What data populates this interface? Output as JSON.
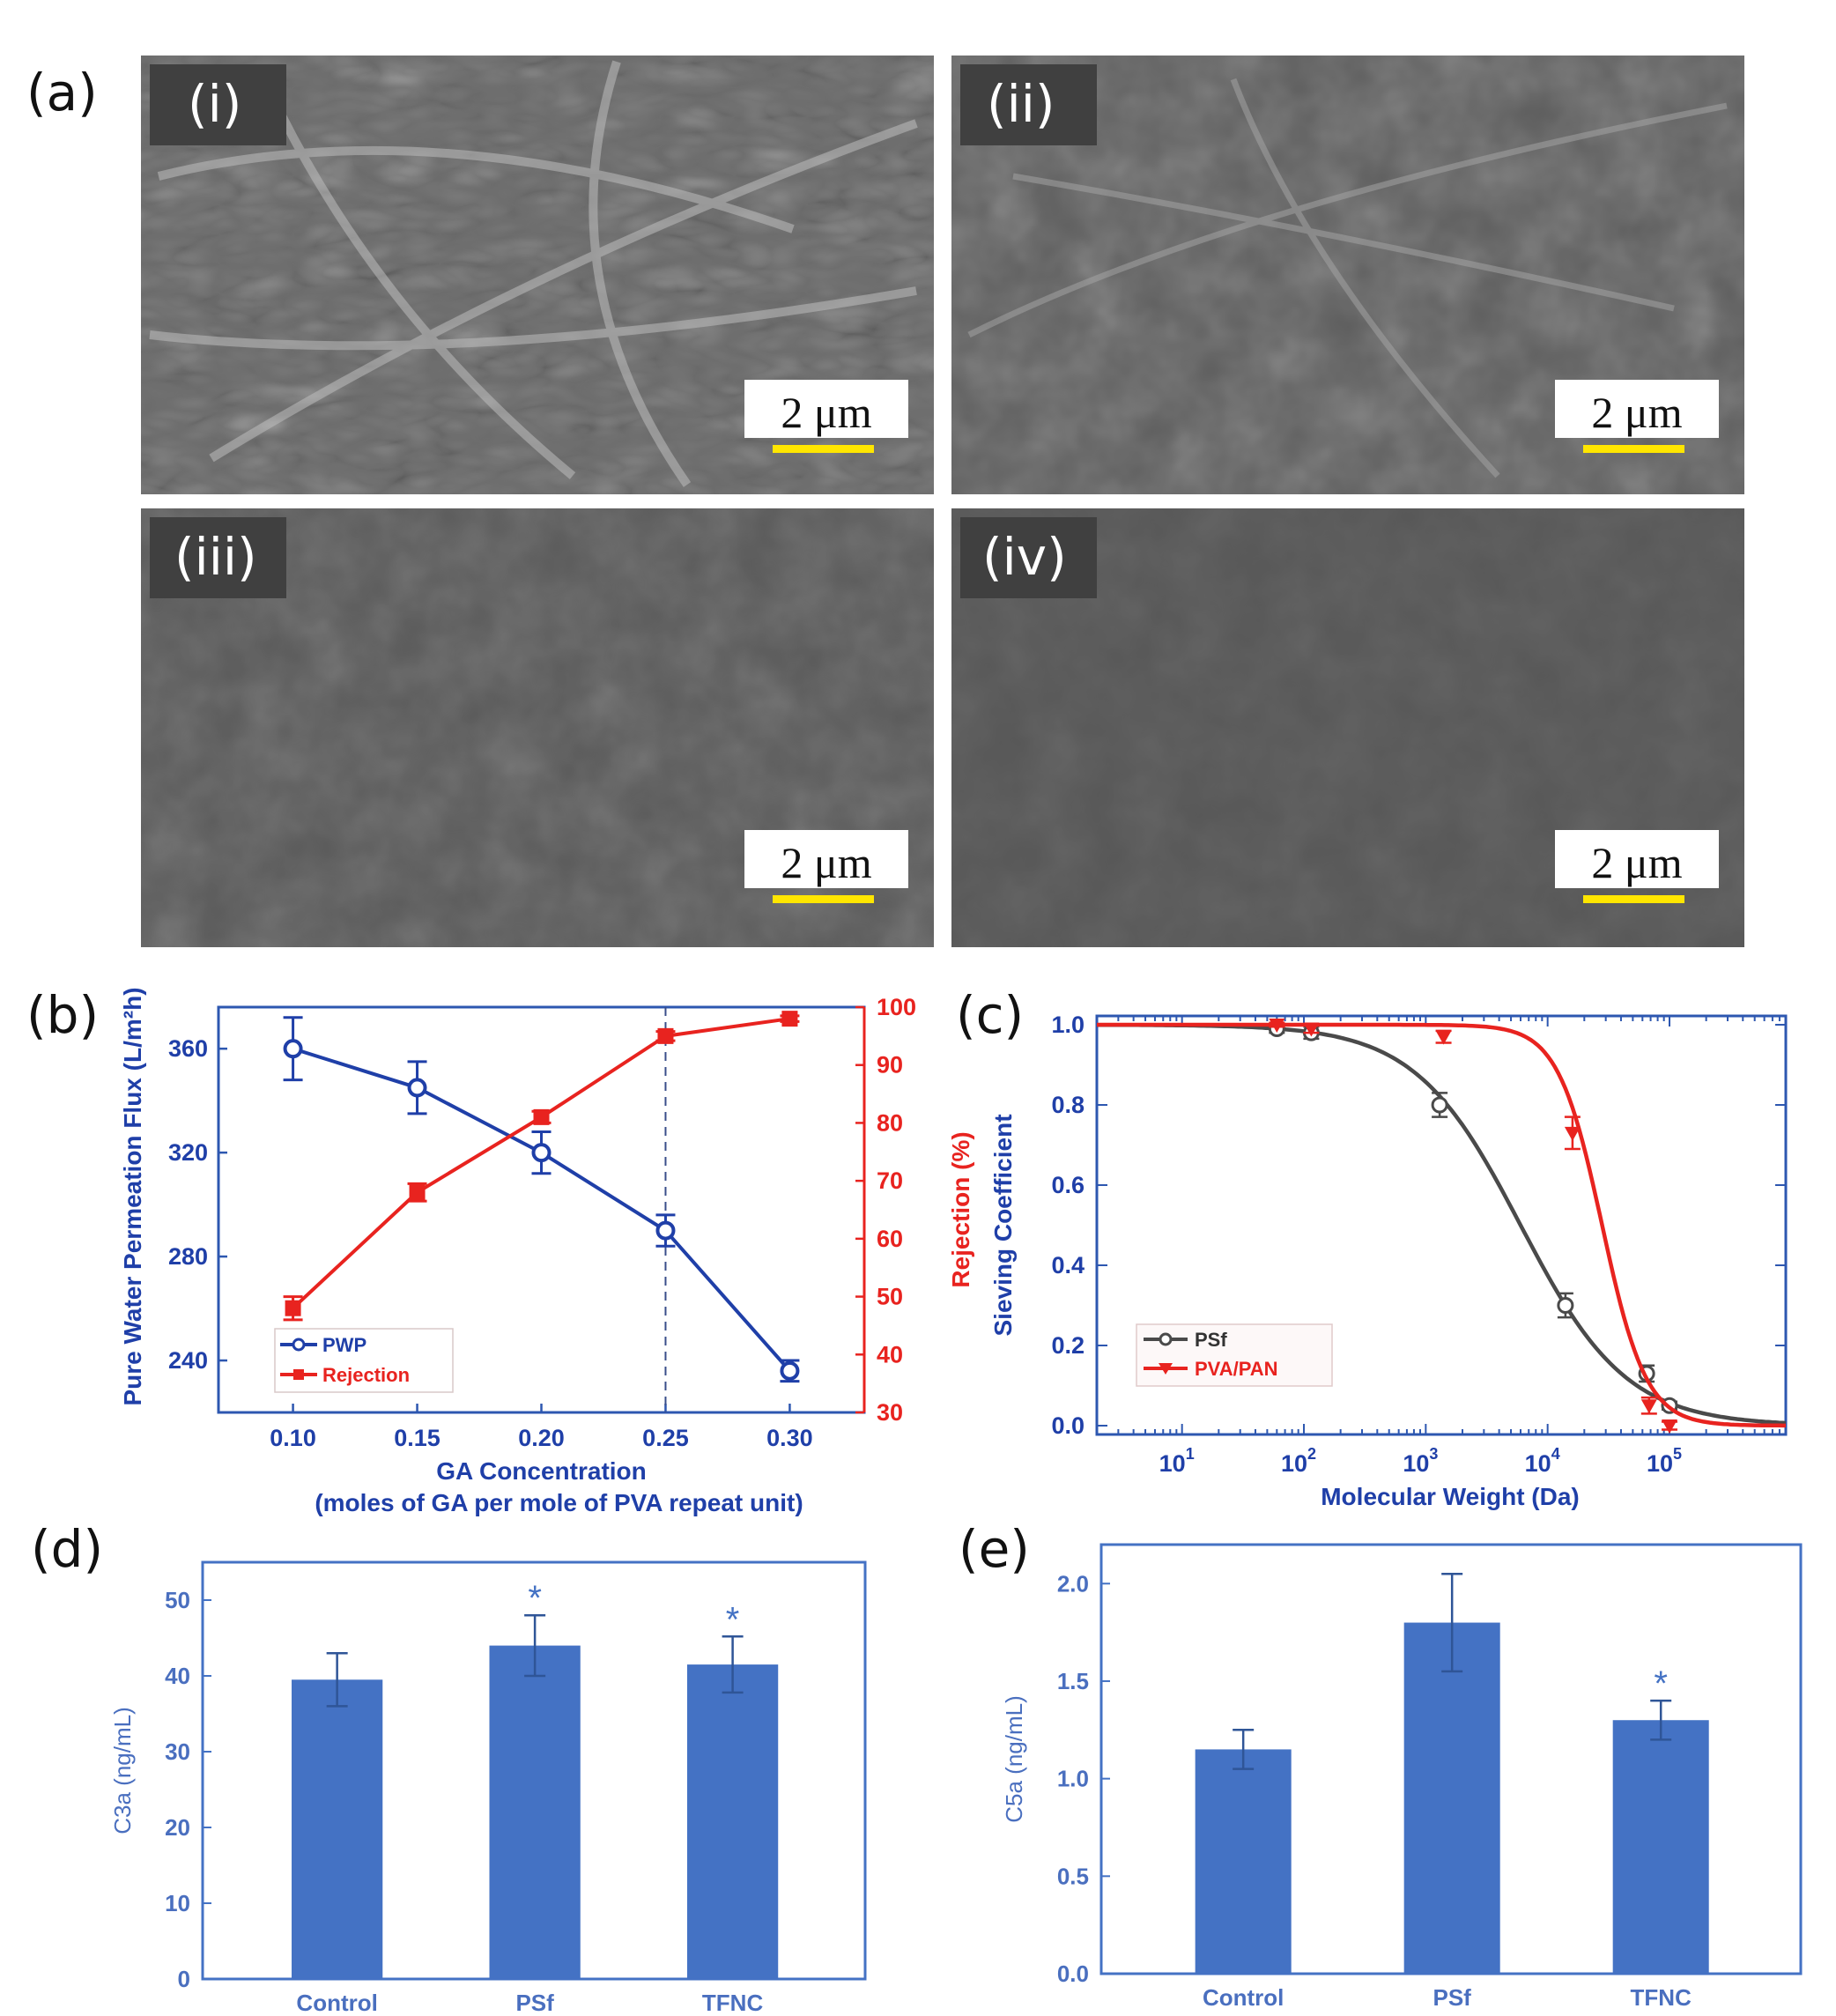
{
  "panel_a": {
    "letter": "(a)",
    "images": [
      {
        "label": "(i)",
        "scale_bar": "2 μm"
      },
      {
        "label": "(ii)",
        "scale_bar": "2 μm"
      },
      {
        "label": "(iii)",
        "scale_bar": "2 μm"
      },
      {
        "label": "(iv)",
        "scale_bar": "2 μm"
      }
    ]
  },
  "colors": {
    "blue_series": "#1f3fa8",
    "red_series": "#e8231f",
    "dark_series": "#4a4a4a",
    "bar_fill": "#4472c4",
    "axis_blue": "#2d57b0",
    "sem_scale_bar": "#ffe600"
  },
  "chart_data": [
    {
      "id": "b",
      "panel_letter": "(b)",
      "type": "line",
      "xlabel": "GA Concentration",
      "xlabel2": "(moles of GA per mole of PVA repeat unit)",
      "ylabel_left": "Pure Water Permeation Flux (L/m²h)",
      "ylabel_right": "Rejection (%)",
      "x": [
        0.1,
        0.15,
        0.2,
        0.25,
        0.3
      ],
      "xticks": [
        "0.10",
        "0.15",
        "0.20",
        "0.25",
        "0.30"
      ],
      "xlim": [
        0.07,
        0.33
      ],
      "ylim_left": [
        220,
        376
      ],
      "yticks_left": [
        240,
        280,
        320,
        360
      ],
      "ylim_right": [
        30,
        100
      ],
      "yticks_right": [
        30,
        40,
        50,
        60,
        70,
        80,
        90,
        100
      ],
      "dashed_line_x": 0.25,
      "series": [
        {
          "name": "PWP",
          "axis": "left",
          "marker": "circle",
          "values": [
            360,
            345,
            320,
            290,
            236
          ],
          "errors": [
            12,
            10,
            8,
            6,
            4
          ]
        },
        {
          "name": "Rejection",
          "axis": "right",
          "marker": "square",
          "values": [
            48,
            68,
            81,
            95,
            98
          ],
          "errors": [
            2,
            1.5,
            1,
            0.8,
            0.5
          ]
        }
      ],
      "legend_placement": "bottom-left"
    },
    {
      "id": "c",
      "panel_letter": "(c)",
      "type": "scatter",
      "xscale": "log",
      "xlabel": "Molecular Weight (Da)",
      "ylabel": "Sieving Coefficient",
      "xlim": [
        2,
        900000
      ],
      "xticks": [
        {
          "base": "10",
          "exp": "1",
          "value": 10
        },
        {
          "base": "10",
          "exp": "2",
          "value": 100
        },
        {
          "base": "10",
          "exp": "3",
          "value": 1000
        },
        {
          "base": "10",
          "exp": "4",
          "value": 10000
        },
        {
          "base": "10",
          "exp": "5",
          "value": 100000
        }
      ],
      "ylim": [
        0.0,
        1.0
      ],
      "yticks": [
        "0.0",
        "0.2",
        "0.4",
        "0.6",
        "0.8",
        "1.0"
      ],
      "series": [
        {
          "name": "PSf",
          "marker": "open-circle",
          "points": [
            [
              60,
              0.99
            ],
            [
              115,
              0.98
            ],
            [
              1300,
              0.8
            ],
            [
              14000,
              0.3
            ],
            [
              65000,
              0.13
            ],
            [
              100000,
              0.05
            ]
          ],
          "errors": [
            0.01,
            0.015,
            0.03,
            0.03,
            0.02,
            0.01
          ],
          "fit": {
            "x50": 6000,
            "slope": 1.0
          }
        },
        {
          "name": "PVA/PAN",
          "marker": "down-triangle",
          "points": [
            [
              60,
              1.0
            ],
            [
              115,
              0.99
            ],
            [
              1400,
              0.97
            ],
            [
              16000,
              0.73
            ],
            [
              68000,
              0.05
            ],
            [
              100000,
              0.0
            ]
          ],
          "errors": [
            0.005,
            0.01,
            0.015,
            0.04,
            0.02,
            0.01
          ],
          "fit": {
            "x50": 28000,
            "slope": 2.4
          }
        }
      ],
      "legend_placement": "bottom-left"
    },
    {
      "id": "d",
      "panel_letter": "(d)",
      "type": "bar",
      "categories": [
        "Control",
        "PSf",
        "TFNC"
      ],
      "values": [
        39.5,
        44,
        41.5
      ],
      "errors": [
        3.5,
        4,
        3.7
      ],
      "significance": [
        "",
        "*",
        "*"
      ],
      "ylabel": "C3a (ng/mL)",
      "ylim": [
        0,
        55
      ],
      "yticks": [
        "0",
        "10",
        "20",
        "30",
        "40",
        "50"
      ]
    },
    {
      "id": "e",
      "panel_letter": "(e)",
      "type": "bar",
      "categories": [
        "Control",
        "PSf",
        "TFNC"
      ],
      "values": [
        1.15,
        1.8,
        1.3
      ],
      "errors": [
        0.1,
        0.25,
        0.1
      ],
      "significance": [
        "",
        "",
        "*"
      ],
      "ylabel": "C5a (ng/mL)",
      "ylim": [
        0,
        2.2
      ],
      "yticks": [
        "0.0",
        "0.5",
        "1.0",
        "1.5",
        "2.0"
      ]
    }
  ]
}
